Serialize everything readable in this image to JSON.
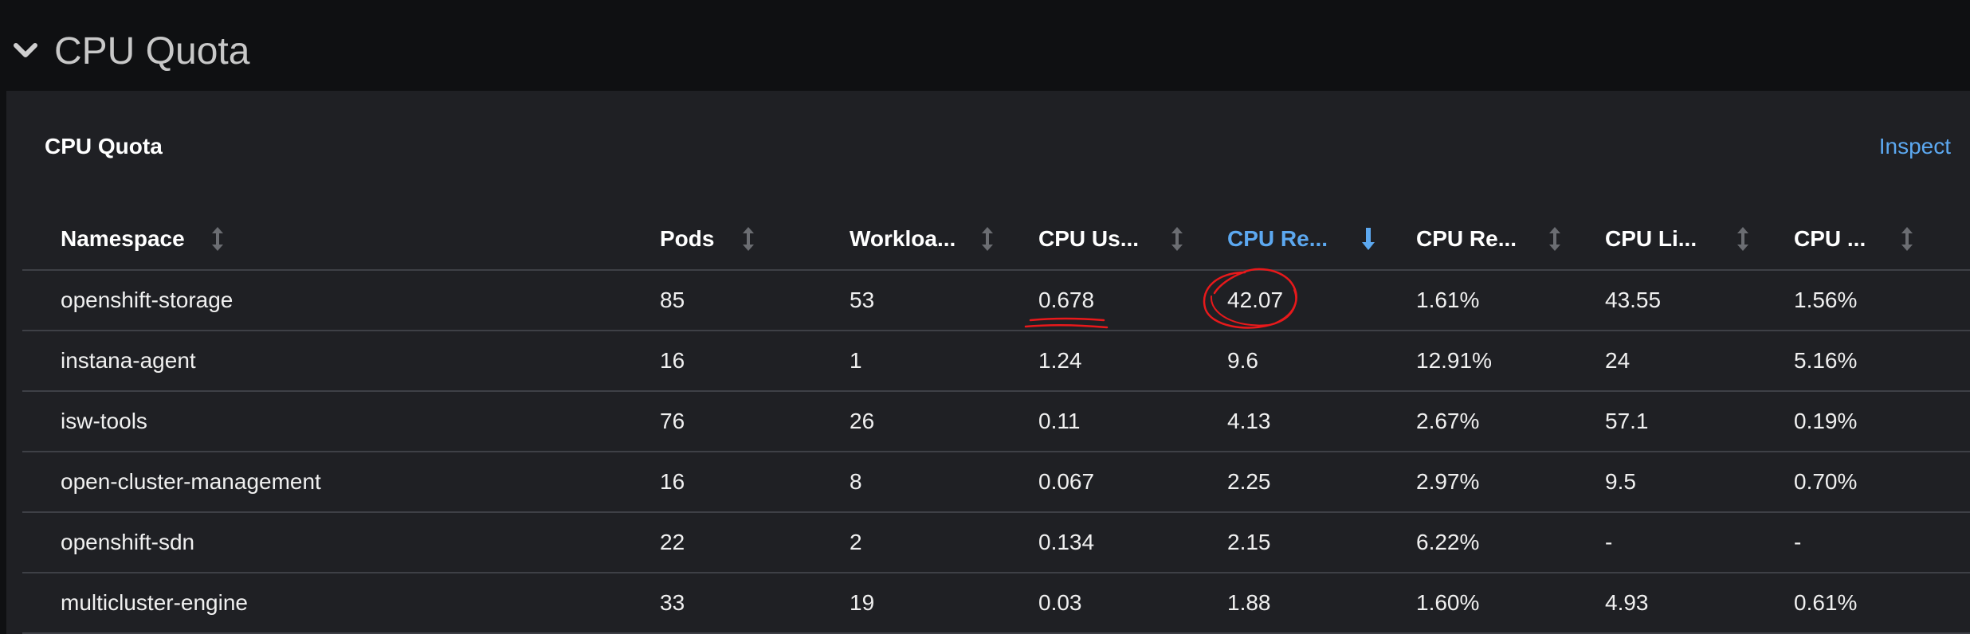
{
  "section": {
    "title": "CPU Quota"
  },
  "panel": {
    "title": "CPU Quota",
    "inspect_label": "Inspect"
  },
  "table": {
    "columns": [
      {
        "label": "Namespace",
        "sort": "none"
      },
      {
        "label": "Pods",
        "sort": "none"
      },
      {
        "label": "Workloa...",
        "sort": "none"
      },
      {
        "label": "CPU Us...",
        "sort": "none"
      },
      {
        "label": "CPU Re...",
        "sort": "descending"
      },
      {
        "label": "CPU Re...",
        "sort": "none"
      },
      {
        "label": "CPU Li...",
        "sort": "none"
      },
      {
        "label": "CPU ...",
        "sort": "none"
      }
    ],
    "rows": [
      [
        "openshift-storage",
        "85",
        "53",
        "0.678",
        "42.07",
        "1.61%",
        "43.55",
        "1.56%"
      ],
      [
        "instana-agent",
        "16",
        "1",
        "1.24",
        "9.6",
        "12.91%",
        "24",
        "5.16%"
      ],
      [
        "isw-tools",
        "76",
        "26",
        "0.11",
        "4.13",
        "2.67%",
        "57.1",
        "0.19%"
      ],
      [
        "open-cluster-management",
        "16",
        "8",
        "0.067",
        "2.25",
        "2.97%",
        "9.5",
        "0.70%"
      ],
      [
        "openshift-sdn",
        "22",
        "2",
        "0.134",
        "2.15",
        "6.22%",
        "-",
        "-"
      ],
      [
        "multicluster-engine",
        "33",
        "19",
        "0.03",
        "1.88",
        "1.60%",
        "4.93",
        "0.61%"
      ]
    ]
  },
  "colors": {
    "accent": "#5ca8f0",
    "annotation": "#e8191b"
  }
}
